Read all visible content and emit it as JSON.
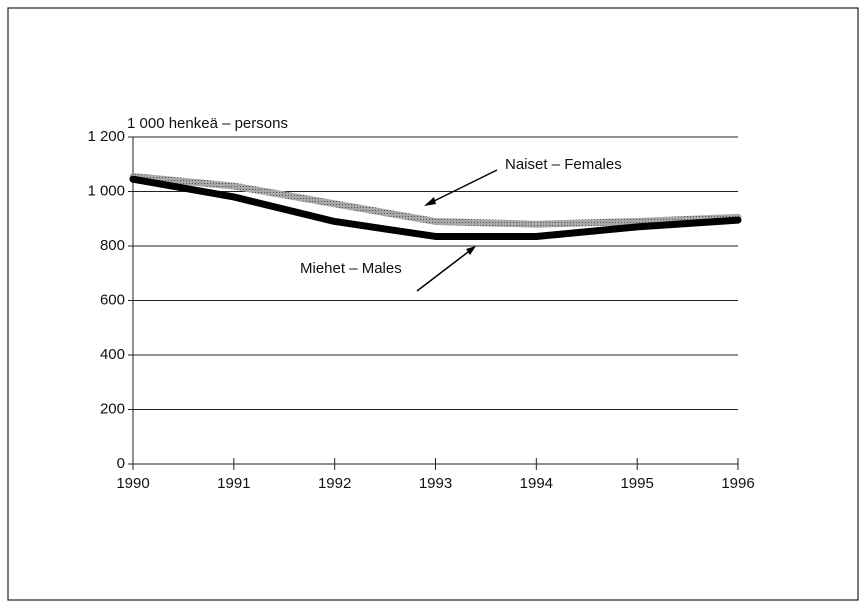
{
  "chart_data": {
    "type": "line",
    "ylabel": "1 000 henkeä – persons",
    "x": [
      1990,
      1991,
      1992,
      1993,
      1994,
      1995,
      1996
    ],
    "xlim": [
      1990,
      1996
    ],
    "xticks": [
      1990,
      1991,
      1992,
      1993,
      1994,
      1995,
      1996
    ],
    "ylim": [
      0,
      1200
    ],
    "yticks": [
      0,
      200,
      400,
      600,
      800,
      {
        "value": 1000,
        "label": "1 000"
      },
      {
        "value": 1200,
        "label": "1 200"
      }
    ],
    "grid": true,
    "series": [
      {
        "name": "Naiset – Females",
        "color": "#a8a8a8",
        "values": [
          1055,
          1020,
          955,
          890,
          880,
          890,
          905
        ]
      },
      {
        "name": "Miehet – Males",
        "color": "#000000",
        "values": [
          1045,
          980,
          890,
          835,
          835,
          870,
          895
        ]
      }
    ]
  }
}
